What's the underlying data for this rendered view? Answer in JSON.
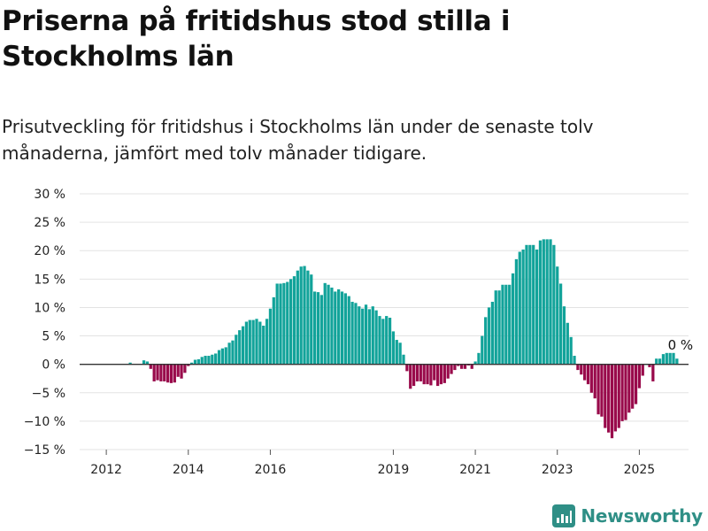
{
  "header": {
    "title": "Priserna på fritidshus stod stilla i Stockholms län",
    "subtitle": "Prisutveckling för fritidshus i Stockholms län under de senaste tolv månaderna, jämfört med tolv månader tidigare."
  },
  "brand": {
    "name": "Newsworthy"
  },
  "colors": {
    "positive": "#12a39a",
    "negative": "#990a4b",
    "grid": "#e3e3e3",
    "zero": "#333333",
    "brand": "#2f8f86"
  },
  "chart_data": {
    "type": "bar",
    "ylim": [
      -15,
      30
    ],
    "yticks": [
      30,
      25,
      20,
      15,
      10,
      5,
      0,
      -5,
      -10,
      -15
    ],
    "ytick_labels": [
      "30 %",
      "25 %",
      "20 %",
      "15 %",
      "10 %",
      "5 %",
      "0 %",
      "−5 %",
      "−10 %",
      "−15 %"
    ],
    "xticks": [
      "2012",
      "2014",
      "2016",
      "2019",
      "2021",
      "2023",
      "2025"
    ],
    "x_start": "2012-01",
    "annotation": "0 %",
    "values": [
      0.1,
      0.1,
      0.1,
      0.1,
      0.1,
      0.1,
      0.1,
      0.3,
      0.1,
      0.1,
      0.1,
      0.7,
      0.5,
      -0.8,
      -3,
      -2.8,
      -3,
      -3,
      -3.2,
      -3.3,
      -3.2,
      -2.2,
      -2.5,
      -1.5,
      -0.3,
      0.3,
      0.8,
      0.9,
      1.3,
      1.5,
      1.5,
      1.7,
      1.9,
      2.5,
      2.8,
      3,
      3.8,
      4.2,
      5.2,
      6,
      6.7,
      7.5,
      7.8,
      7.8,
      8,
      7.5,
      6.8,
      8,
      9.8,
      11.8,
      14.2,
      14.2,
      14.3,
      14.5,
      15,
      15.5,
      16.5,
      17.2,
      17.3,
      16.5,
      15.8,
      12.8,
      12.7,
      12.2,
      14.3,
      14,
      13.5,
      12.8,
      13.2,
      12.8,
      12.5,
      12,
      11,
      10.8,
      10.2,
      9.8,
      10.5,
      9.7,
      10.2,
      9.5,
      8.5,
      8,
      8.5,
      8.2,
      5.8,
      4.3,
      3.8,
      1.7,
      -1.2,
      -4.3,
      -3.8,
      -3,
      -3,
      -3.5,
      -3.5,
      -3.7,
      -2.8,
      -3.8,
      -3.5,
      -3.3,
      -2.5,
      -1.7,
      -1,
      -0.3,
      -0.8,
      -0.8,
      -0.2,
      -0.8,
      0.5,
      2,
      5,
      8.3,
      10,
      11,
      13,
      13,
      14,
      14,
      14,
      16,
      18.5,
      19.8,
      20.2,
      21,
      21,
      21,
      20.2,
      21.8,
      22,
      22,
      22,
      21,
      17.2,
      14.2,
      10.2,
      7.3,
      4.8,
      1.5,
      -1,
      -1.8,
      -2.8,
      -3.5,
      -5,
      -6,
      -8.8,
      -9.2,
      -11.2,
      -12,
      -13,
      -11.8,
      -11.2,
      -10,
      -9.8,
      -8.5,
      -7.8,
      -7,
      -4.2,
      -2,
      0,
      -0.5,
      -3,
      1,
      1,
      1.8,
      2,
      2,
      2,
      1
    ]
  }
}
